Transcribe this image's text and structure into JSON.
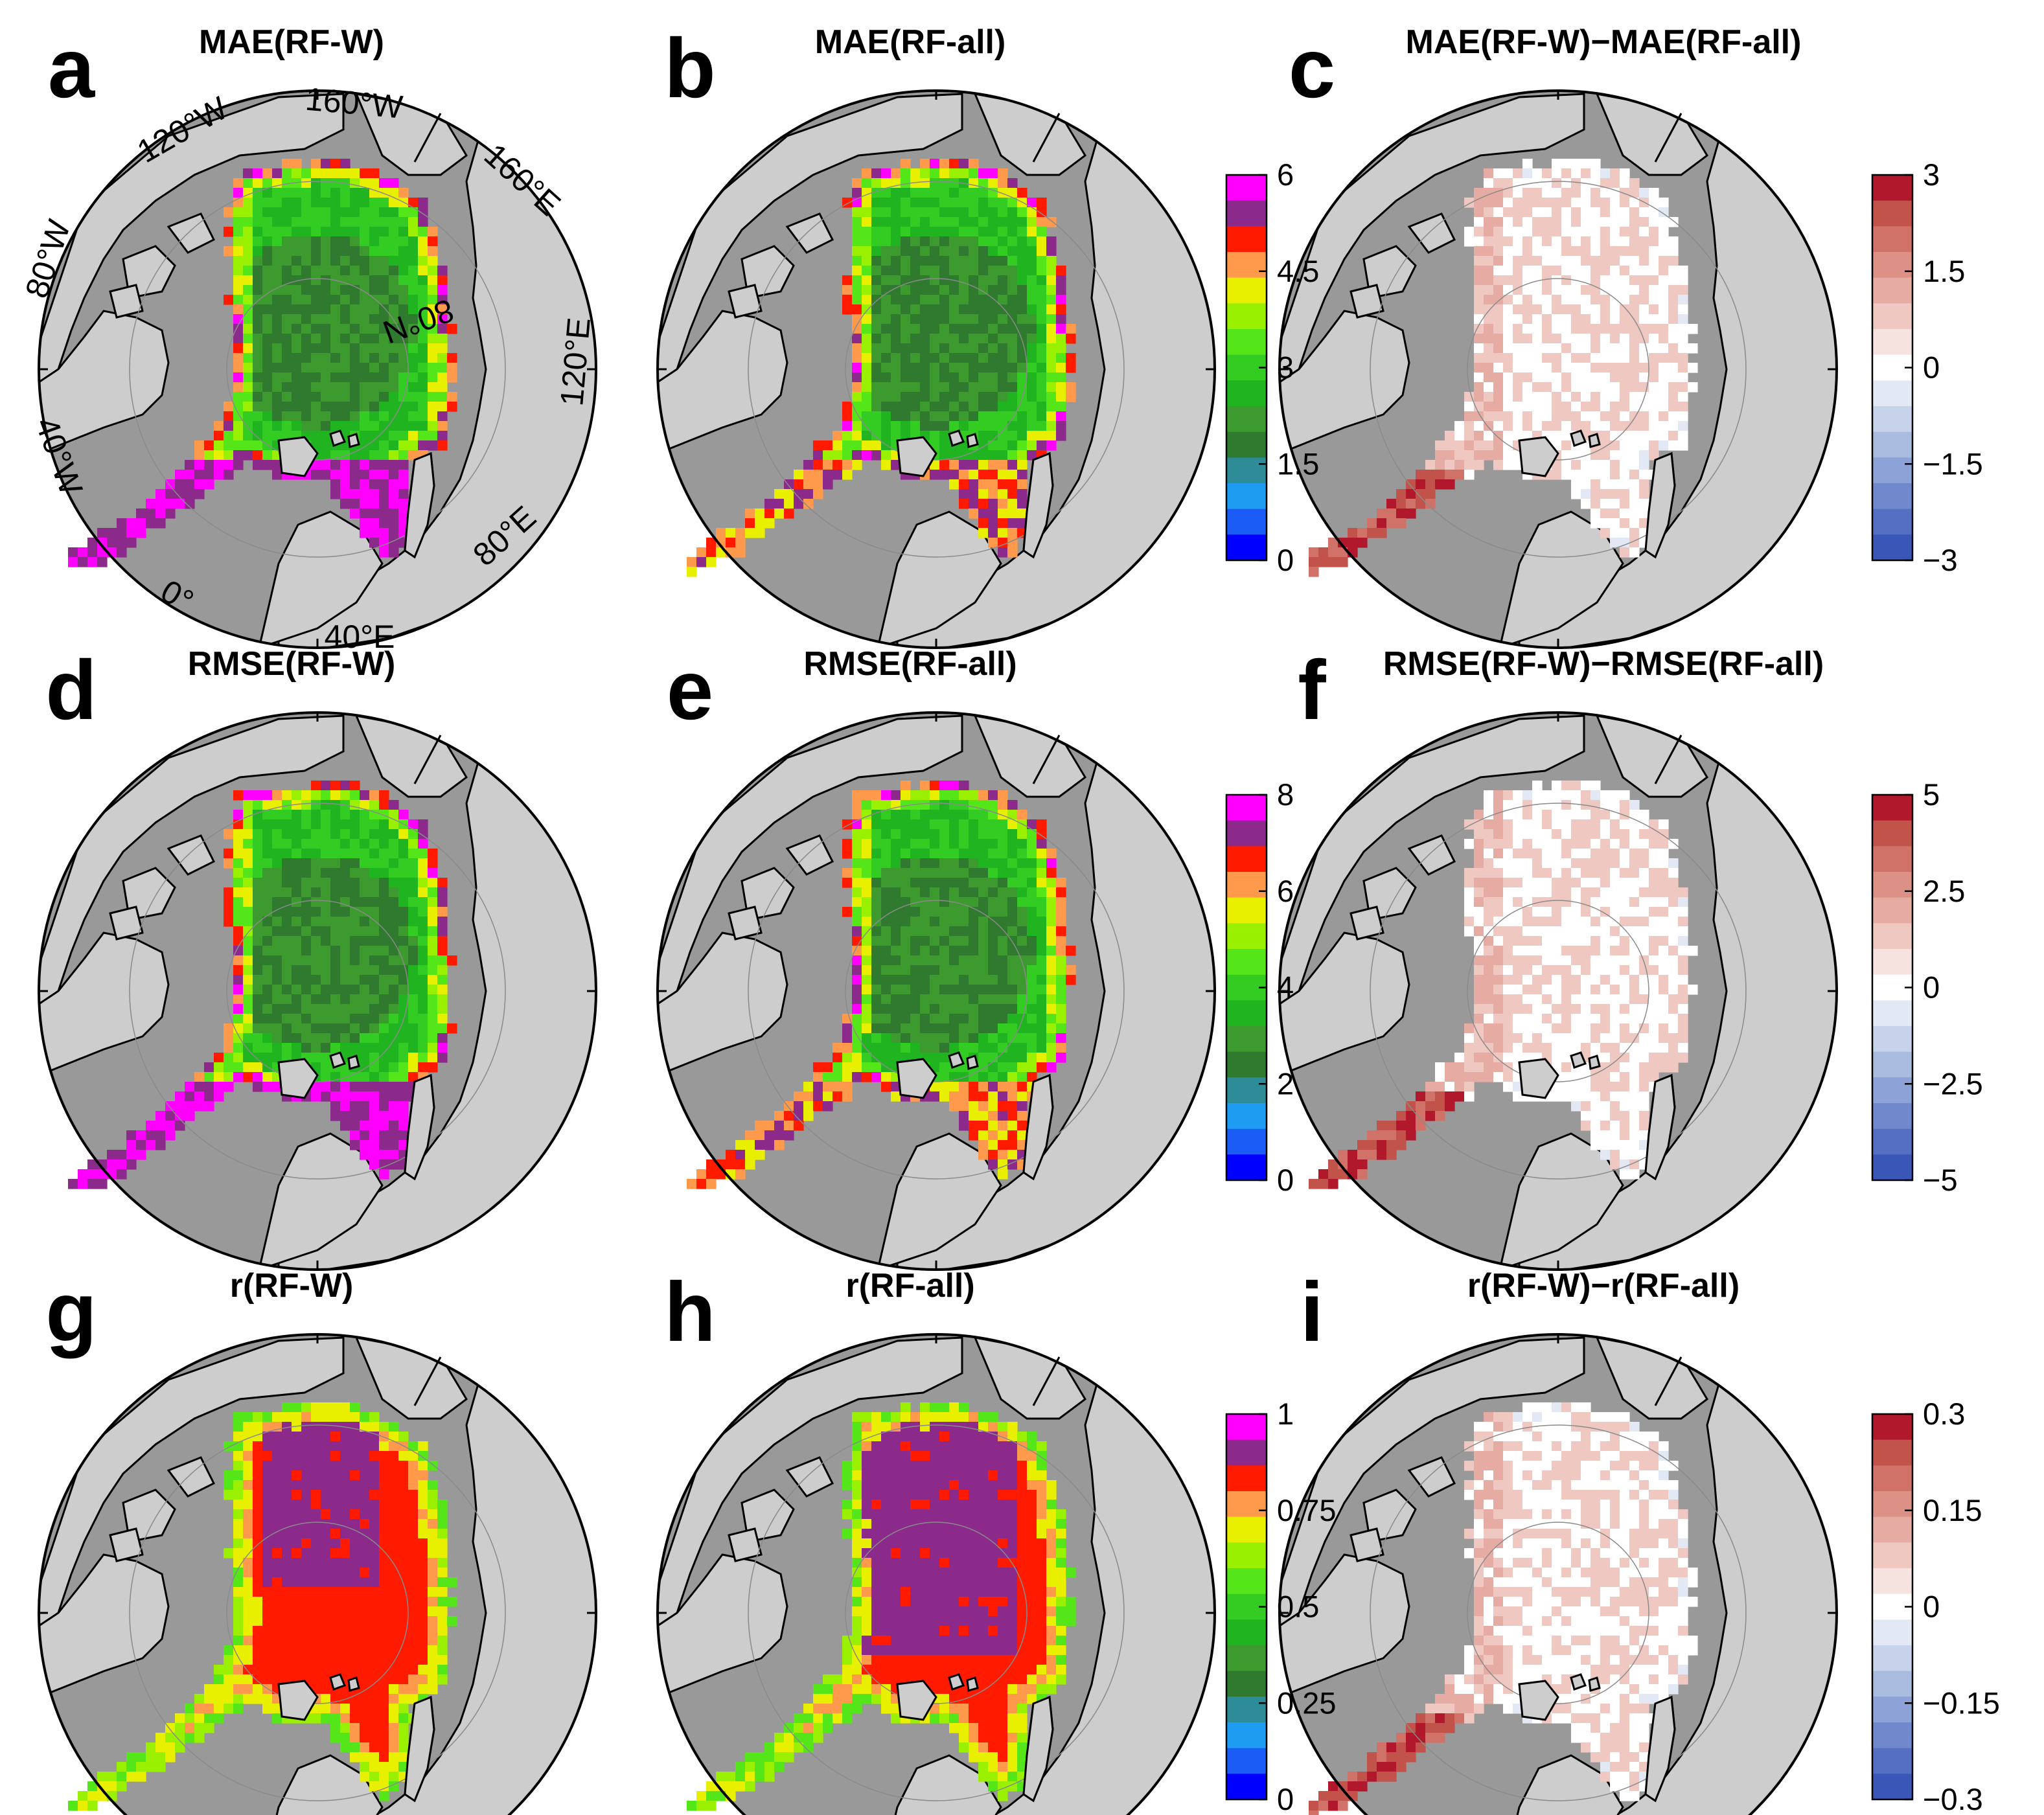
{
  "figure": {
    "background": "#ffffff",
    "colors": {
      "ocean": "#999999",
      "land": "#cdcdcd",
      "coast": "#000000",
      "seq_palette": [
        "#0000ff",
        "#1a5cf5",
        "#1e9cf2",
        "#2e8b98",
        "#2f7a2f",
        "#3c9a2e",
        "#20b420",
        "#33cc22",
        "#55e61a",
        "#99f000",
        "#e8f000",
        "#ff9a4d",
        "#ff1a00",
        "#8c2a8c",
        "#ff00ff"
      ],
      "div_palette": [
        "#3a56b7",
        "#5570c2",
        "#7189cc",
        "#8da2d6",
        "#a9bce0",
        "#c6d3ea",
        "#e2e9f5",
        "#ffffff",
        "#f6e2df",
        "#efc8c2",
        "#e6aca4",
        "#dc9086",
        "#d07268",
        "#c2534a",
        "#b2182b"
      ]
    },
    "graticule_labels": [
      "160°W",
      "120°W",
      "80°W",
      "40°W",
      "0°",
      "40°E",
      "80°E",
      "120°E",
      "160°E",
      "80°N"
    ],
    "panels": [
      {
        "id": "a",
        "label": "a",
        "title": "MAE(RF-W)",
        "metric": "mae",
        "variant": "w"
      },
      {
        "id": "b",
        "label": "b",
        "title": "MAE(RF-all)",
        "metric": "mae",
        "variant": "all"
      },
      {
        "id": "c",
        "label": "c",
        "title": "MAE(RF-W)−MAE(RF-all)",
        "metric": "mae",
        "variant": "diff"
      },
      {
        "id": "d",
        "label": "d",
        "title": "RMSE(RF-W)",
        "metric": "rmse",
        "variant": "w"
      },
      {
        "id": "e",
        "label": "e",
        "title": "RMSE(RF-all)",
        "metric": "rmse",
        "variant": "all"
      },
      {
        "id": "f",
        "label": "f",
        "title": "RMSE(RF-W)−RMSE(RF-all)",
        "metric": "rmse",
        "variant": "diff"
      },
      {
        "id": "g",
        "label": "g",
        "title": "r(RF-W)",
        "metric": "r",
        "variant": "w"
      },
      {
        "id": "h",
        "label": "h",
        "title": "r(RF-all)",
        "metric": "r",
        "variant": "all"
      },
      {
        "id": "i",
        "label": "i",
        "title": "r(RF-W)−r(RF-all)",
        "metric": "r",
        "variant": "diff"
      }
    ],
    "colorbars": [
      {
        "id": "mae-seq",
        "row": "mae",
        "kind": "sequential",
        "ticks": [
          "6",
          "4.5",
          "3",
          "1.5",
          "0"
        ]
      },
      {
        "id": "mae-div",
        "row": "mae",
        "kind": "diverging",
        "ticks": [
          "3",
          "1.5",
          "0",
          "−1.5",
          "−3"
        ]
      },
      {
        "id": "rmse-seq",
        "row": "rmse",
        "kind": "sequential",
        "ticks": [
          "8",
          "6",
          "4",
          "2",
          "0"
        ]
      },
      {
        "id": "rmse-div",
        "row": "rmse",
        "kind": "diverging",
        "ticks": [
          "5",
          "2.5",
          "0",
          "−2.5",
          "−5"
        ]
      },
      {
        "id": "r-seq",
        "row": "r",
        "kind": "sequential",
        "ticks": [
          "1",
          "0.75",
          "0.5",
          "0.25",
          "0"
        ]
      },
      {
        "id": "r-div",
        "row": "r",
        "kind": "diverging",
        "ticks": [
          "0.3",
          "0.15",
          "0",
          "−0.15",
          "−0.3"
        ]
      }
    ]
  }
}
